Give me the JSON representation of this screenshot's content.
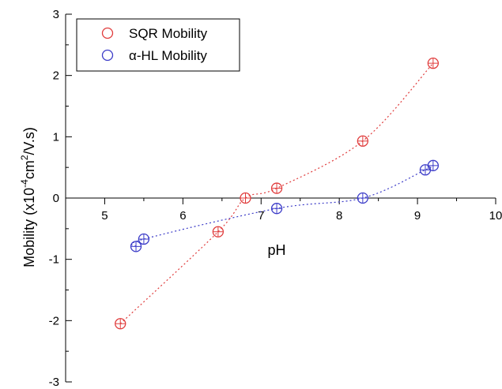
{
  "chart_data": {
    "type": "scatter",
    "title": "",
    "xlabel": "pH",
    "ylabel": "Mobility (x10",
    "ylabel_exp1": "-4",
    "ylabel_mid": "cm",
    "ylabel_exp2": "2",
    "ylabel_tail": "/V.s)",
    "xlim": [
      4.5,
      10
    ],
    "ylim": [
      -3,
      3
    ],
    "xticks": [
      "5",
      "6",
      "7",
      "8",
      "9",
      "10"
    ],
    "yticks": [
      "3",
      "2",
      "1",
      "0",
      "-1",
      "-2",
      "-3"
    ],
    "grid": false,
    "legend_position": "top-left",
    "series": [
      {
        "name": "SQR Mobility",
        "color": "#e03c3c",
        "marker": "open-circle",
        "fit": "dotted",
        "x": [
          5.2,
          6.45,
          6.8,
          7.2,
          8.3,
          9.2
        ],
        "y": [
          -2.05,
          -0.55,
          0.0,
          0.16,
          0.93,
          2.2
        ]
      },
      {
        "name": "α-HL Mobility",
        "color": "#3c3cc8",
        "marker": "open-circle",
        "fit": "dotted",
        "x": [
          5.4,
          5.5,
          7.2,
          8.3,
          9.1,
          9.2
        ],
        "y": [
          -0.79,
          -0.67,
          -0.17,
          0.0,
          0.46,
          0.53
        ]
      }
    ]
  }
}
